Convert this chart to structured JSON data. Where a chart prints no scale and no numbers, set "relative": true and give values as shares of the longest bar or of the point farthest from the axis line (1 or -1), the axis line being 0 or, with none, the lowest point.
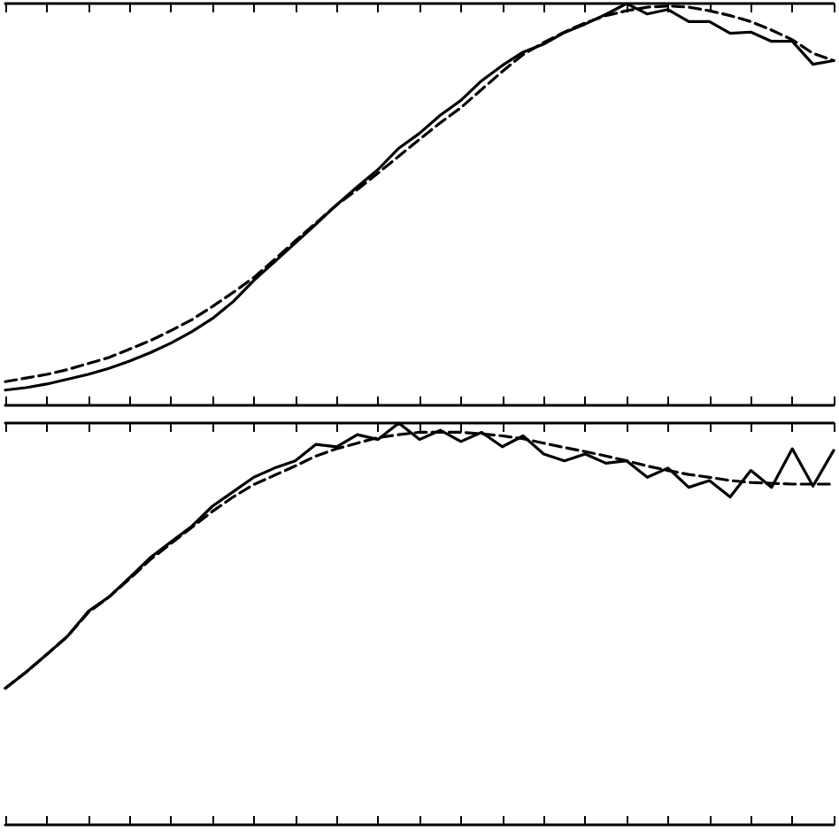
{
  "chart_data": [
    {
      "type": "line",
      "relative": true,
      "grid": false,
      "marker": "none",
      "categories": [
        null,
        null,
        null,
        null,
        null,
        null,
        null,
        null,
        null,
        null,
        null,
        null,
        null,
        null,
        null,
        null,
        null,
        null,
        null,
        null,
        null,
        null,
        null,
        null,
        null,
        null,
        null,
        null,
        null,
        null,
        null,
        null,
        null,
        null,
        null,
        null,
        null,
        null,
        null,
        null,
        null
      ],
      "series": [
        {
          "color": "#000000",
          "line_style": "solid",
          "values": [
            0.038,
            0.044,
            0.053,
            0.065,
            0.077,
            0.092,
            0.11,
            0.131,
            0.155,
            0.183,
            0.216,
            0.258,
            0.311,
            0.357,
            0.404,
            0.451,
            0.499,
            0.544,
            0.587,
            0.64,
            0.677,
            0.722,
            0.759,
            0.808,
            0.846,
            0.879,
            0.899,
            0.928,
            0.949,
            0.973,
            1.0,
            0.974,
            0.985,
            0.955,
            0.955,
            0.926,
            0.929,
            0.906,
            0.906,
            0.849,
            0.858
          ]
        },
        {
          "color": "#000000",
          "line_style": "dashed",
          "values": [
            0.059,
            0.068,
            0.077,
            0.089,
            0.104,
            0.119,
            0.14,
            0.161,
            0.186,
            0.213,
            0.246,
            0.281,
            0.318,
            0.363,
            0.409,
            0.454,
            0.499,
            0.537,
            0.578,
            0.62,
            0.662,
            0.703,
            0.741,
            0.786,
            0.831,
            0.873,
            0.903,
            0.929,
            0.952,
            0.97,
            0.982,
            0.991,
            0.994,
            0.991,
            0.982,
            0.97,
            0.955,
            0.934,
            0.91,
            0.876,
            0.858
          ]
        }
      ]
    },
    {
      "type": "line",
      "relative": true,
      "grid": false,
      "marker": "none",
      "categories": [
        null,
        null,
        null,
        null,
        null,
        null,
        null,
        null,
        null,
        null,
        null,
        null,
        null,
        null,
        null,
        null,
        null,
        null,
        null,
        null,
        null,
        null,
        null,
        null,
        null,
        null,
        null,
        null,
        null,
        null,
        null,
        null,
        null,
        null,
        null,
        null,
        null,
        null,
        null,
        null,
        null
      ],
      "series": [
        {
          "color": "#000000",
          "line_style": "solid",
          "values": [
            0.34,
            0.38,
            0.424,
            0.469,
            0.531,
            0.567,
            0.615,
            0.665,
            0.704,
            0.743,
            0.793,
            0.829,
            0.865,
            0.888,
            0.906,
            0.947,
            0.941,
            0.971,
            0.959,
            1.0,
            0.959,
            0.982,
            0.954,
            0.977,
            0.941,
            0.968,
            0.923,
            0.906,
            0.923,
            0.9,
            0.906,
            0.865,
            0.888,
            0.84,
            0.857,
            0.816,
            0.882,
            0.84,
            0.936,
            0.843,
            0.932
          ]
        },
        {
          "color": "#000000",
          "line_style": "dashed",
          "values": [
            0.34,
            0.38,
            0.424,
            0.469,
            0.528,
            0.567,
            0.612,
            0.66,
            0.7,
            0.74,
            0.78,
            0.816,
            0.847,
            0.87,
            0.893,
            0.918,
            0.936,
            0.95,
            0.964,
            0.971,
            0.977,
            0.977,
            0.977,
            0.973,
            0.968,
            0.961,
            0.95,
            0.939,
            0.929,
            0.918,
            0.906,
            0.893,
            0.882,
            0.872,
            0.865,
            0.857,
            0.852,
            0.85,
            0.848,
            0.848,
            0.848
          ]
        }
      ]
    }
  ]
}
